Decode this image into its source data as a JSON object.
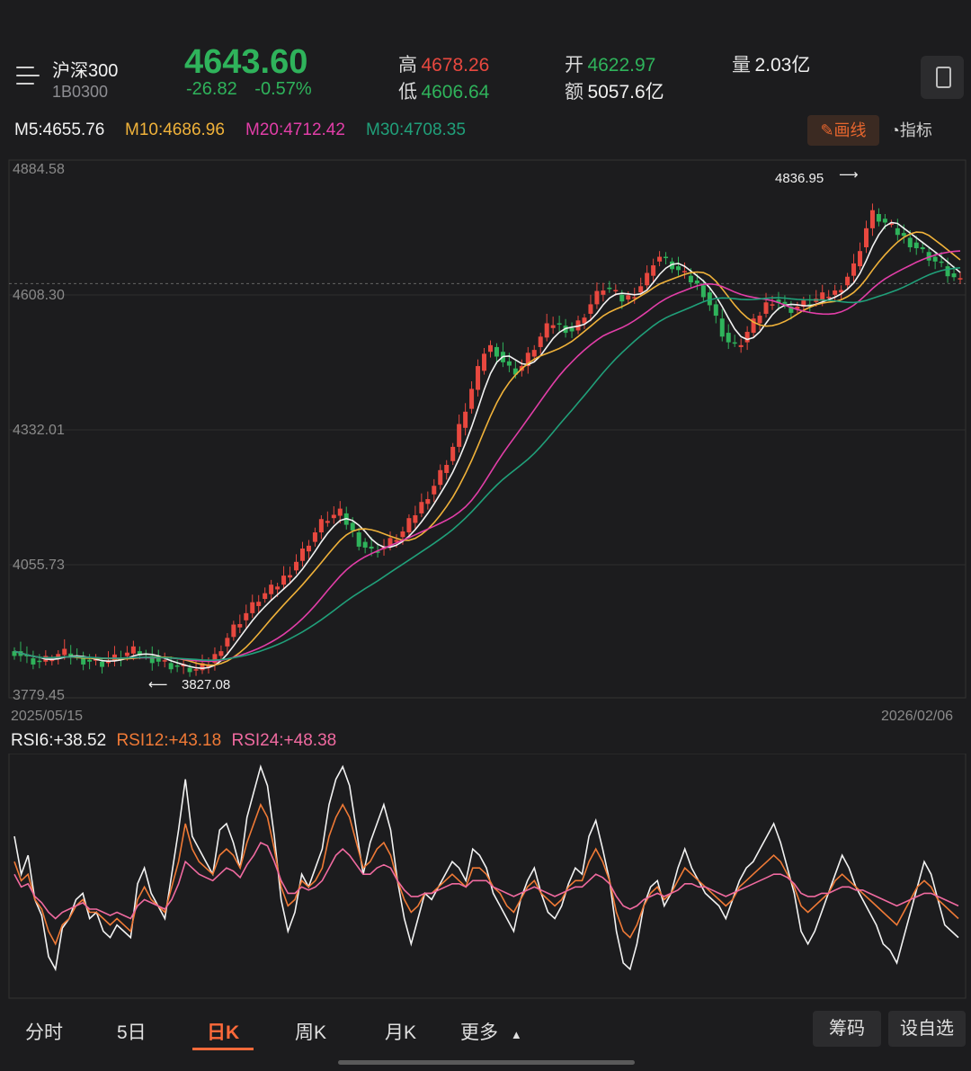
{
  "header": {
    "name": "沪深300",
    "code": "1B0300",
    "price": "4643.60",
    "change": "-26.82",
    "change_pct": "-0.57%",
    "high_label": "高",
    "high": "4678.26",
    "low_label": "低",
    "low": "4606.64",
    "open_label": "开",
    "open": "4622.97",
    "amount_label": "额",
    "amount": "5057.6亿",
    "volume_label": "量",
    "volume": "2.03亿"
  },
  "ma": {
    "m5": "M5:4655.76",
    "m10": "M10:4686.96",
    "m20": "M20:4712.42",
    "m30": "M30:4708.35"
  },
  "tools": {
    "draw": "画线",
    "indicator": "指标"
  },
  "colors": {
    "up": "#e8483f",
    "down": "#2fb35b",
    "m5": "#f2f2f2",
    "m10": "#f0b23a",
    "m20": "#e23ea8",
    "m30": "#20a07a",
    "accent": "#ff6a3a"
  },
  "chart_data": [
    {
      "type": "candlestick",
      "y_ticks": [
        "4884.58",
        "4608.30",
        "4332.01",
        "4055.73",
        "3779.45"
      ],
      "ylim": [
        3779.45,
        4884.58
      ],
      "x_start": "2025/05/15",
      "x_end": "2026/02/06",
      "max_label": "4836.95",
      "min_label": "3827.08",
      "ref_line": 4643.6,
      "close_path": [
        3870,
        3862,
        3855,
        3850,
        3848,
        3852,
        3858,
        3862,
        3865,
        3860,
        3855,
        3852,
        3850,
        3848,
        3845,
        3850,
        3855,
        3860,
        3865,
        3870,
        3865,
        3860,
        3855,
        3850,
        3845,
        3840,
        3838,
        3835,
        3832,
        3830,
        3835,
        3845,
        3860,
        3880,
        3900,
        3920,
        3935,
        3950,
        3965,
        3980,
        3990,
        4000,
        4010,
        4025,
        4040,
        4060,
        4080,
        4100,
        4120,
        4140,
        4150,
        4155,
        4160,
        4140,
        4120,
        4100,
        4090,
        4080,
        4085,
        4090,
        4100,
        4110,
        4120,
        4140,
        4160,
        4180,
        4200,
        4220,
        4245,
        4270,
        4300,
        4340,
        4380,
        4420,
        4460,
        4500,
        4510,
        4500,
        4480,
        4465,
        4460,
        4470,
        4490,
        4510,
        4530,
        4550,
        4560,
        4555,
        4550,
        4545,
        4560,
        4580,
        4600,
        4620,
        4635,
        4630,
        4620,
        4610,
        4615,
        4625,
        4640,
        4660,
        4690,
        4700,
        4690,
        4680,
        4670,
        4660,
        4650,
        4640,
        4625,
        4600,
        4570,
        4540,
        4520,
        4510,
        4520,
        4540,
        4560,
        4580,
        4600,
        4610,
        4605,
        4595,
        4590,
        4595,
        4600,
        4605,
        4610,
        4615,
        4620,
        4625,
        4640,
        4660,
        4680,
        4720,
        4760,
        4790,
        4780,
        4770,
        4760,
        4750,
        4740,
        4730,
        4720,
        4710,
        4700,
        4690,
        4680,
        4665,
        4655,
        4645
      ]
    },
    {
      "type": "line",
      "title": "",
      "series_labels": [
        "RSI6:+38.52",
        "RSI12:+43.18",
        "RSI24:+48.38"
      ],
      "series": [
        {
          "name": "RSI6",
          "color": "#f2f2f2",
          "values": [
            70,
            58,
            64,
            50,
            45,
            32,
            28,
            41,
            44,
            50,
            52,
            44,
            46,
            40,
            38,
            42,
            40,
            38,
            55,
            60,
            52,
            48,
            44,
            58,
            72,
            88,
            70,
            66,
            62,
            58,
            72,
            74,
            68,
            60,
            76,
            84,
            92,
            86,
            70,
            50,
            40,
            46,
            58,
            54,
            60,
            66,
            80,
            88,
            92,
            86,
            72,
            58,
            68,
            74,
            80,
            72,
            56,
            44,
            36,
            44,
            52,
            50,
            54,
            58,
            62,
            60,
            56,
            66,
            64,
            60,
            52,
            48,
            44,
            40,
            50,
            56,
            60,
            52,
            46,
            44,
            48,
            55,
            60,
            58,
            70,
            75,
            66,
            56,
            40,
            30,
            28,
            36,
            48,
            54,
            56,
            48,
            52,
            60,
            66,
            60,
            56,
            52,
            50,
            48,
            44,
            50,
            56,
            60,
            62,
            66,
            70,
            74,
            68,
            60,
            52,
            40,
            36,
            40,
            46,
            52,
            58,
            64,
            60,
            54,
            50,
            46,
            42,
            36,
            34,
            30,
            38,
            46,
            54,
            62,
            58,
            50,
            42,
            40,
            38
          ]
        },
        {
          "name": "RSI12",
          "color": "#f07a36",
          "values": [
            62,
            56,
            58,
            50,
            47,
            40,
            36,
            42,
            44,
            48,
            50,
            46,
            46,
            44,
            42,
            44,
            42,
            40,
            50,
            54,
            50,
            48,
            46,
            54,
            62,
            74,
            66,
            62,
            60,
            58,
            64,
            66,
            64,
            60,
            68,
            74,
            80,
            76,
            66,
            54,
            48,
            50,
            56,
            54,
            56,
            60,
            70,
            76,
            80,
            76,
            68,
            60,
            62,
            66,
            68,
            64,
            56,
            50,
            46,
            48,
            52,
            52,
            54,
            56,
            58,
            56,
            54,
            60,
            60,
            58,
            54,
            52,
            48,
            46,
            50,
            54,
            56,
            52,
            50,
            48,
            50,
            54,
            56,
            56,
            62,
            66,
            62,
            56,
            46,
            40,
            38,
            42,
            48,
            52,
            54,
            50,
            52,
            56,
            60,
            58,
            56,
            54,
            52,
            50,
            48,
            50,
            54,
            56,
            58,
            60,
            62,
            64,
            62,
            58,
            54,
            48,
            46,
            48,
            50,
            52,
            56,
            58,
            56,
            54,
            52,
            50,
            48,
            46,
            44,
            42,
            46,
            50,
            54,
            56,
            54,
            50,
            48,
            46,
            44
          ]
        },
        {
          "name": "RSI24",
          "color": "#f06aa0",
          "values": [
            58,
            54,
            55,
            51,
            49,
            46,
            44,
            46,
            47,
            48,
            49,
            47,
            47,
            46,
            45,
            46,
            45,
            44,
            48,
            50,
            49,
            48,
            47,
            50,
            55,
            62,
            60,
            58,
            57,
            56,
            58,
            60,
            59,
            57,
            61,
            64,
            68,
            67,
            62,
            56,
            52,
            52,
            54,
            53,
            54,
            56,
            60,
            64,
            66,
            64,
            61,
            58,
            58,
            60,
            61,
            60,
            56,
            53,
            51,
            51,
            52,
            52,
            53,
            54,
            55,
            55,
            54,
            56,
            56,
            56,
            54,
            53,
            52,
            51,
            52,
            53,
            54,
            53,
            52,
            51,
            52,
            53,
            54,
            54,
            56,
            58,
            57,
            55,
            51,
            48,
            47,
            48,
            50,
            51,
            52,
            51,
            52,
            53,
            55,
            55,
            54,
            54,
            53,
            52,
            51,
            52,
            53,
            54,
            55,
            56,
            57,
            58,
            58,
            57,
            55,
            52,
            51,
            51,
            52,
            52,
            53,
            54,
            54,
            53,
            53,
            52,
            51,
            50,
            49,
            48,
            49,
            50,
            51,
            52,
            52,
            51,
            50,
            49,
            48
          ]
        }
      ]
    }
  ],
  "tabs": [
    "分时",
    "5日",
    "日K",
    "周K",
    "月K",
    "更多"
  ],
  "actions": {
    "chips": "筹码",
    "watchlist": "设自选"
  }
}
